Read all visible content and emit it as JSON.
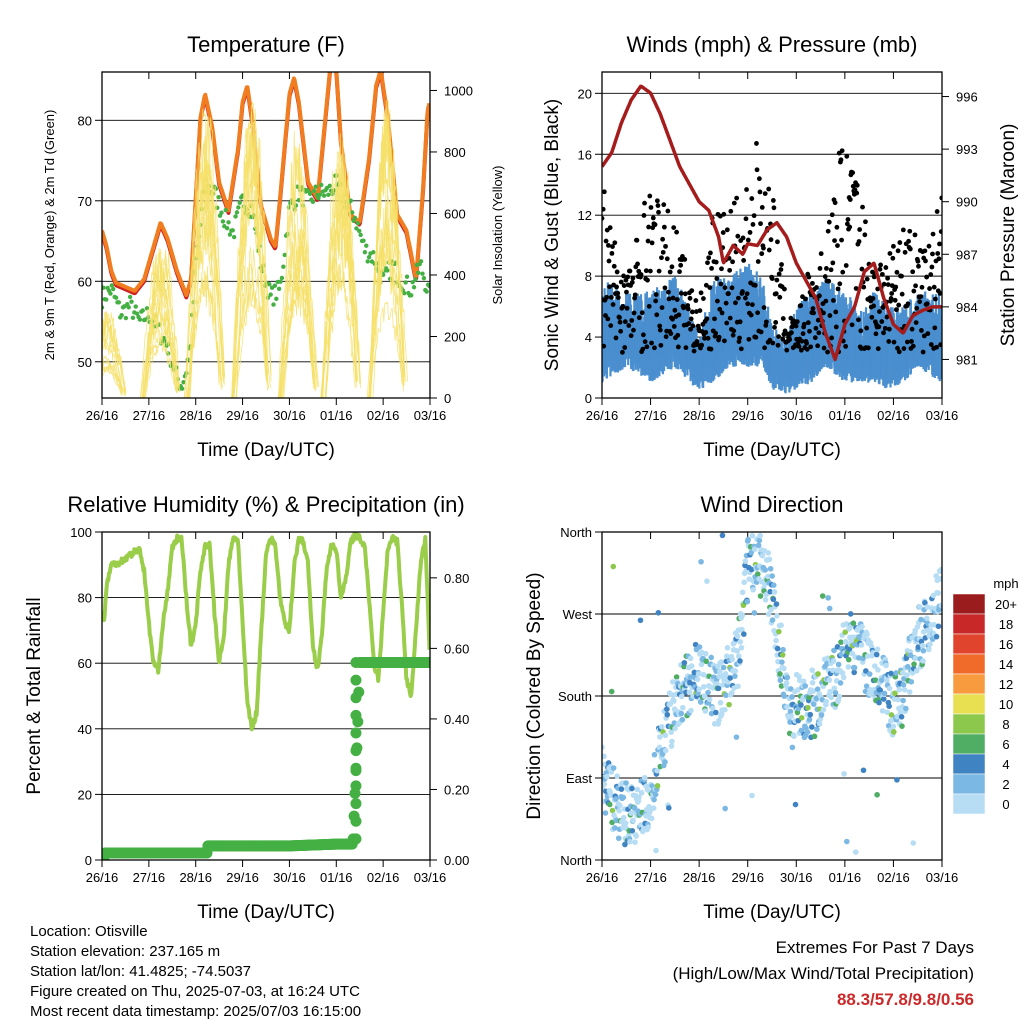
{
  "chart_data": [
    {
      "id": "temp",
      "type": "line",
      "title": "Temperature (F)",
      "xlabel": "Time (Day/UTC)",
      "ylabel": "2m & 9m T (Red, Orange) & 2m Td (Green)",
      "y2label": "Solar Insolation (Yellow)",
      "x_ticks": [
        "26/16",
        "27/16",
        "28/16",
        "29/16",
        "30/16",
        "01/16",
        "02/16",
        "03/16"
      ],
      "xlim": [
        0,
        7
      ],
      "ylim": [
        45.5,
        86
      ],
      "y_ticks": [
        50,
        60,
        70,
        80
      ],
      "y2lim": [
        0,
        1060
      ],
      "y2_ticks": [
        0,
        200,
        400,
        600,
        800,
        1000
      ],
      "grid": true,
      "series": [
        {
          "color": "#d02020",
          "axis": "left",
          "style": "line",
          "x": [
            0,
            0.1,
            0.2,
            0.3,
            0.5,
            0.7,
            0.9,
            1.0,
            1.1,
            1.25,
            1.4,
            1.5,
            1.6,
            1.7,
            1.8,
            1.9,
            2.0,
            2.1,
            2.2,
            2.35,
            2.5,
            2.7,
            2.9,
            3.0,
            3.1,
            3.2,
            3.4,
            3.6,
            3.7,
            3.8,
            4.0,
            4.1,
            4.2,
            4.4,
            4.6,
            4.8,
            4.9,
            5.0,
            5.1,
            5.3,
            5.5,
            5.7,
            5.85,
            5.95,
            6.1,
            6.3,
            6.5,
            6.7,
            6.85,
            6.95,
            7.0
          ],
          "y": [
            66,
            64,
            61,
            59.5,
            59,
            58.5,
            60,
            62,
            64,
            67,
            65,
            63,
            61,
            59.5,
            58,
            60,
            70,
            80,
            83,
            79,
            72,
            68.5,
            76,
            82,
            84,
            80,
            69,
            65,
            64,
            70,
            83,
            85,
            82,
            72,
            70,
            82,
            88,
            86,
            77,
            68,
            67,
            75,
            84,
            86,
            80,
            68,
            66,
            60,
            71,
            81,
            82
          ]
        },
        {
          "color": "#f07d20",
          "axis": "left",
          "style": "line",
          "x": [
            0,
            0.1,
            0.2,
            0.3,
            0.5,
            0.7,
            0.9,
            1.0,
            1.1,
            1.25,
            1.4,
            1.5,
            1.6,
            1.7,
            1.8,
            1.9,
            2.0,
            2.1,
            2.2,
            2.35,
            2.5,
            2.7,
            2.9,
            3.0,
            3.1,
            3.2,
            3.4,
            3.6,
            3.7,
            3.8,
            4.0,
            4.1,
            4.2,
            4.4,
            4.6,
            4.8,
            4.9,
            5.0,
            5.1,
            5.3,
            5.5,
            5.7,
            5.85,
            5.95,
            6.1,
            6.3,
            6.5,
            6.7,
            6.85,
            6.95,
            7.0
          ],
          "y": [
            66.3,
            64.3,
            61.3,
            59.8,
            59.3,
            58.8,
            60.3,
            62.3,
            64.3,
            67.3,
            65.3,
            63.3,
            61.3,
            59.8,
            58.3,
            60.3,
            70.3,
            80.3,
            83.3,
            79.3,
            72.3,
            68.8,
            76.3,
            82.3,
            84.3,
            80.3,
            69.3,
            65.3,
            64.3,
            70.3,
            83.3,
            85.3,
            82.3,
            72.3,
            70.3,
            82.3,
            88.3,
            86.3,
            77.3,
            68.3,
            67.3,
            75.3,
            84.3,
            86.3,
            80.3,
            68.3,
            66.3,
            60.3,
            71.3,
            81.3,
            82.3
          ]
        },
        {
          "color": "#44b044",
          "axis": "left",
          "style": "dots",
          "x": [
            0,
            0.2,
            0.4,
            0.6,
            0.8,
            1.0,
            1.2,
            1.4,
            1.6,
            1.7,
            1.8,
            1.9,
            2.0,
            2.1,
            2.2,
            2.4,
            2.6,
            2.8,
            3.0,
            3.2,
            3.4,
            3.6,
            3.8,
            4.0,
            4.2,
            4.4,
            4.6,
            4.8,
            5.0,
            5.2,
            5.4,
            5.6,
            5.8,
            6.0,
            6.2,
            6.4,
            6.6,
            6.8,
            7.0
          ],
          "y": [
            58,
            59,
            56,
            57,
            55,
            56,
            54,
            52,
            48,
            47,
            49,
            53,
            62,
            67,
            72,
            71,
            68,
            66,
            70,
            69,
            62,
            58,
            59,
            69,
            71,
            70,
            71,
            71,
            72,
            70,
            68,
            64,
            63,
            60,
            62,
            60,
            59,
            62,
            58
          ]
        },
        {
          "color": "#f6e06a",
          "axis": "right",
          "style": "spikes",
          "peaks": [
            {
              "x": 0.1,
              "v": 300
            },
            {
              "x": 1.25,
              "v": 560
            },
            {
              "x": 2.2,
              "v": 980
            },
            {
              "x": 3.2,
              "v": 1000
            },
            {
              "x": 4.2,
              "v": 1010
            },
            {
              "x": 5.1,
              "v": 1000
            },
            {
              "x": 6.1,
              "v": 1000
            }
          ]
        }
      ]
    },
    {
      "id": "wind",
      "type": "scatter",
      "title": "Winds (mph) & Pressure (mb)",
      "xlabel": "Time (Day/UTC)",
      "ylabel": "Sonic Wind & Gust (Blue, Black)",
      "y2label": "Station Pressure (Maroon)",
      "x_ticks": [
        "26/16",
        "27/16",
        "28/16",
        "29/16",
        "30/16",
        "01/16",
        "02/16",
        "03/16"
      ],
      "xlim": [
        0,
        7
      ],
      "ylim": [
        0,
        21.4
      ],
      "y_ticks": [
        0,
        4,
        8,
        12,
        16,
        20
      ],
      "y2lim": [
        978.8,
        997.4
      ],
      "y2_ticks": [
        981,
        984,
        987,
        990,
        993,
        996
      ],
      "grid": true,
      "series": [
        {
          "color": "#4a8fcf",
          "axis": "left",
          "style": "band",
          "x": [
            0,
            0.5,
            1.0,
            1.5,
            1.8,
            2.0,
            2.3,
            2.6,
            3.0,
            3.3,
            3.5,
            3.8,
            4.0,
            4.3,
            4.6,
            5.0,
            5.3,
            5.6,
            5.9,
            6.2,
            6.5,
            7.0
          ],
          "lo": [
            1,
            2,
            1,
            2,
            1,
            0.5,
            1,
            2,
            2,
            2,
            0.5,
            0.2,
            0.5,
            1,
            2,
            1,
            1,
            1,
            0.5,
            1,
            2,
            1
          ],
          "hi": [
            8,
            7,
            7,
            8,
            6,
            4,
            8,
            8,
            9,
            8,
            5,
            4,
            6,
            7,
            8,
            7,
            6,
            7,
            6,
            6,
            7,
            7
          ]
        },
        {
          "color": "#000000",
          "axis": "left",
          "style": "gust-dots",
          "x": [
            0,
            0.3,
            0.6,
            0.9,
            1.2,
            1.5,
            1.8,
            2.0,
            2.3,
            2.6,
            2.9,
            3.2,
            3.5,
            3.8,
            4.0,
            4.3,
            4.6,
            4.9,
            5.2,
            5.5,
            5.8,
            6.1,
            6.4,
            6.7,
            7.0
          ],
          "y": [
            15,
            10,
            9,
            14,
            13,
            12,
            8,
            6,
            13,
            12,
            14,
            17,
            14,
            6,
            5,
            9,
            10,
            17,
            16,
            11,
            9,
            12,
            11,
            10,
            16
          ]
        },
        {
          "color": "#a51c1c",
          "axis": "right",
          "style": "line",
          "x": [
            0,
            0.2,
            0.4,
            0.6,
            0.8,
            1.0,
            1.2,
            1.4,
            1.6,
            1.8,
            2.0,
            2.2,
            2.4,
            2.5,
            2.7,
            2.9,
            3.0,
            3.2,
            3.4,
            3.6,
            3.8,
            4.0,
            4.2,
            4.4,
            4.6,
            4.8,
            5.0,
            5.2,
            5.4,
            5.6,
            5.8,
            6.0,
            6.2,
            6.4,
            6.6,
            6.8,
            7.0
          ],
          "y": [
            992,
            992.8,
            994.5,
            995.8,
            996.6,
            996.2,
            995,
            993.5,
            992,
            991,
            990,
            989.5,
            988,
            986.5,
            987.5,
            987,
            987.6,
            987.5,
            988.4,
            988.8,
            988,
            986.5,
            985.5,
            984.5,
            982.5,
            981,
            983,
            984,
            986,
            986.5,
            984.5,
            983,
            982.5,
            983.5,
            983.8,
            984,
            984
          ]
        }
      ]
    },
    {
      "id": "rh",
      "type": "line",
      "title": "Relative Humidity (%) & Precipitation (in)",
      "xlabel": "Time (Day/UTC)",
      "ylabel": "Percent & Total Rainfall",
      "x_ticks": [
        "26/16",
        "27/16",
        "28/16",
        "29/16",
        "30/16",
        "01/16",
        "02/16",
        "03/16"
      ],
      "xlim": [
        0,
        7
      ],
      "ylim": [
        0,
        100
      ],
      "y_ticks": [
        0,
        20,
        40,
        60,
        80,
        100
      ],
      "y2lim": [
        0,
        0.93
      ],
      "y2_ticks": [
        "0.00",
        "0.20",
        "0.40",
        "0.60",
        "0.80"
      ],
      "grid": true,
      "series": [
        {
          "color": "#9acd4a",
          "axis": "left",
          "style": "line",
          "x": [
            0,
            0.05,
            0.1,
            0.2,
            0.4,
            0.6,
            0.8,
            0.9,
            1.0,
            1.1,
            1.2,
            1.3,
            1.4,
            1.5,
            1.6,
            1.7,
            1.8,
            1.9,
            2.0,
            2.1,
            2.2,
            2.3,
            2.4,
            2.5,
            2.6,
            2.7,
            2.8,
            2.9,
            3.0,
            3.1,
            3.2,
            3.3,
            3.4,
            3.5,
            3.6,
            3.7,
            3.8,
            3.9,
            4.0,
            4.1,
            4.2,
            4.3,
            4.4,
            4.5,
            4.6,
            4.7,
            4.8,
            4.9,
            5.0,
            5.1,
            5.2,
            5.3,
            5.4,
            5.5,
            5.6,
            5.7,
            5.8,
            5.9,
            6.0,
            6.1,
            6.2,
            6.3,
            6.4,
            6.5,
            6.6,
            6.7,
            6.8,
            6.9,
            7.0
          ],
          "y": [
            76,
            73,
            84,
            90,
            91,
            93,
            95,
            88,
            72,
            60,
            58,
            72,
            82,
            95,
            98,
            98,
            80,
            65,
            72,
            88,
            96,
            96,
            75,
            60,
            68,
            90,
            98,
            98,
            72,
            48,
            40,
            45,
            70,
            94,
            98,
            96,
            80,
            72,
            70,
            90,
            98,
            97,
            90,
            65,
            58,
            70,
            90,
            96,
            94,
            80,
            85,
            97,
            99,
            98,
            96,
            80,
            60,
            55,
            75,
            95,
            98,
            97,
            78,
            55,
            50,
            70,
            90,
            98,
            60
          ]
        },
        {
          "color": "#44b044",
          "axis": "right",
          "style": "step",
          "x": [
            0,
            0.05,
            0.06,
            1.0,
            2.0,
            2.25,
            2.26,
            3.0,
            4.0,
            5.0,
            5.35,
            5.36,
            5.45,
            5.5,
            5.52,
            7.0
          ],
          "y": [
            0,
            0,
            0.02,
            0.02,
            0.02,
            0.02,
            0.04,
            0.04,
            0.04,
            0.045,
            0.045,
            0.06,
            0.35,
            0.56,
            0.56,
            0.56
          ]
        }
      ]
    },
    {
      "id": "dir",
      "type": "scatter",
      "title": "Wind Direction",
      "xlabel": "Time (Day/UTC)",
      "ylabel": "Direction (Colored By Speed)",
      "x_ticks": [
        "26/16",
        "27/16",
        "28/16",
        "29/16",
        "30/16",
        "01/16",
        "02/16",
        "03/16"
      ],
      "xlim": [
        0,
        7
      ],
      "ylim": [
        0,
        360
      ],
      "y_tick_labels": [
        "North",
        "East",
        "South",
        "West",
        "North"
      ],
      "y_tick_values": [
        0,
        90,
        180,
        270,
        360
      ],
      "grid": true,
      "series": [
        {
          "name": "direction",
          "style": "speed-colored",
          "x": [
            0,
            0.1,
            0.2,
            0.3,
            0.5,
            0.7,
            0.9,
            1.0,
            1.1,
            1.2,
            1.3,
            1.5,
            1.7,
            1.9,
            2.0,
            2.2,
            2.4,
            2.6,
            2.8,
            3.0,
            3.2,
            3.4,
            3.5,
            3.7,
            3.9,
            4.0,
            4.2,
            4.4,
            4.6,
            4.8,
            5.0,
            5.2,
            5.4,
            5.6,
            5.8,
            6.0,
            6.2,
            6.4,
            6.6,
            6.8,
            7.0
          ],
          "y": [
            95,
            80,
            70,
            60,
            50,
            55,
            60,
            70,
            90,
            120,
            140,
            170,
            190,
            200,
            210,
            190,
            180,
            200,
            220,
            320,
            330,
            310,
            280,
            220,
            150,
            180,
            160,
            170,
            190,
            200,
            230,
            240,
            220,
            210,
            190,
            170,
            180,
            230,
            250,
            270,
            290
          ]
        }
      ]
    }
  ],
  "speed_legend": {
    "title": "mph",
    "labels": [
      "20+",
      "18",
      "16",
      "14",
      "12",
      "10",
      "8",
      "6",
      "4",
      "2",
      "0"
    ],
    "colors": [
      "#9b1c1c",
      "#c82828",
      "#e0442c",
      "#f06a2a",
      "#f89a3e",
      "#e8e050",
      "#8cc84b",
      "#4fae64",
      "#3f83c3",
      "#7bb8e3",
      "#b6ddf3"
    ]
  },
  "info": {
    "location": "Location: Otisville",
    "elevation": "Station elevation: 237.165 m",
    "latlon": "Station lat/lon: 41.4825; -74.5037",
    "created": "Figure created on Thu, 2025-07-03, at 16:24 UTC",
    "recent": "Most recent data timestamp: 2025/07/03 16:15:00"
  },
  "extremes": {
    "line1": "Extremes For Past 7 Days",
    "line2": "(High/Low/Max Wind/Total Precipitation)",
    "values": "88.3/57.8/9.8/0.56"
  }
}
